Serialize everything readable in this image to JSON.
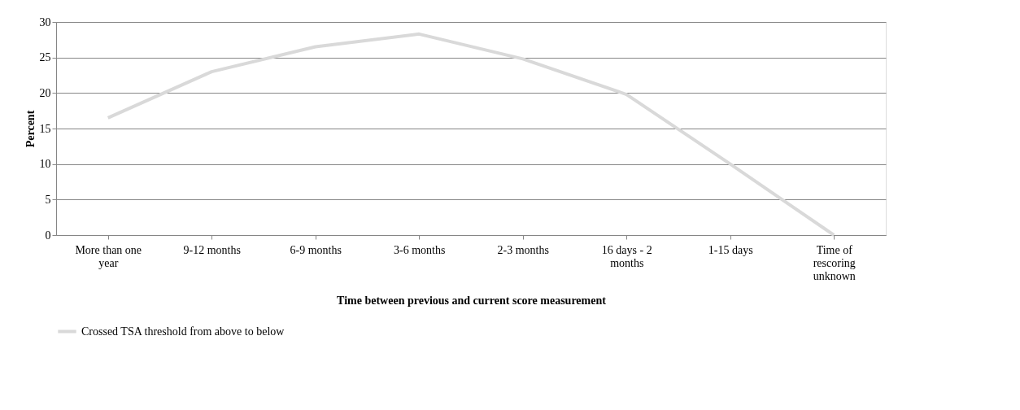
{
  "chart_data": {
    "type": "line",
    "xlabel": "Time between previous and current score measurement",
    "ylabel": "Percent",
    "categories": [
      "More than one year",
      "9-12 months",
      "6-9 months",
      "3-6 months",
      "2-3 months",
      "16 days - 2 months",
      "1-15 days",
      "Time of rescoring unknown"
    ],
    "series": [
      {
        "name": "Crossed TSA threshold from above to below",
        "color": "#d9d9d9",
        "values": [
          16.5,
          23.0,
          26.5,
          28.3,
          24.8,
          19.8,
          10.0,
          0
        ]
      }
    ],
    "ylim": [
      0,
      30
    ],
    "yticks": [
      0,
      5,
      10,
      15,
      20,
      25,
      30
    ],
    "grid": "y",
    "legend": "bottom",
    "marker": "none"
  }
}
